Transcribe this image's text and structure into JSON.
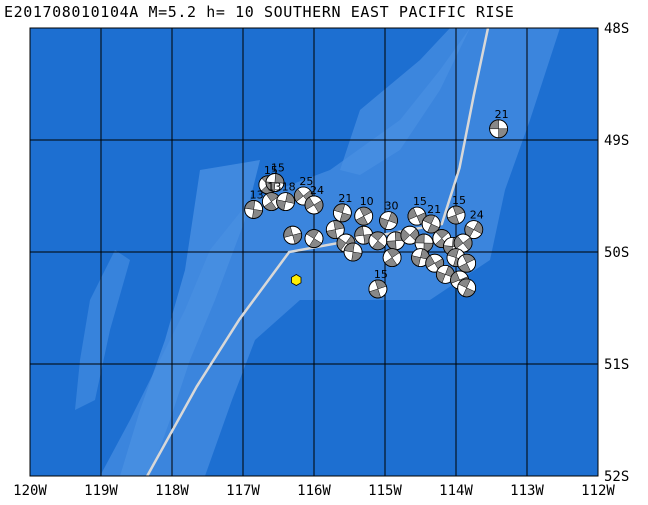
{
  "title": "E201708010104A M=5.2 h= 10 SOUTHERN EAST PACIFIC RISE",
  "map": {
    "colors": {
      "ocean_deep": "#1d6fd1",
      "ridge_shallow": "#3b85dd",
      "grid": "#000000",
      "plate_boundary": "#d8d8d8",
      "epicenter": "#ffee00",
      "beachball_fill": "#888888"
    },
    "lon_range": [
      -120,
      -112
    ],
    "lat_range": [
      -52,
      -48
    ],
    "lon_labels": [
      "120W",
      "119W",
      "118W",
      "117W",
      "116W",
      "115W",
      "114W",
      "113W",
      "112W"
    ],
    "lat_labels": [
      "48S",
      "49S",
      "50S",
      "51S",
      "52S"
    ],
    "epicenter": {
      "lon": -116.25,
      "lat": -50.25
    },
    "boundary": [
      {
        "lon": -113.55,
        "lat": -48.0
      },
      {
        "lon": -113.75,
        "lat": -48.6
      },
      {
        "lon": -113.95,
        "lat": -49.25
      },
      {
        "lon": -114.2,
        "lat": -49.75
      },
      {
        "lon": -116.35,
        "lat": -50.0
      },
      {
        "lon": -117.05,
        "lat": -50.6
      },
      {
        "lon": -117.65,
        "lat": -51.2
      },
      {
        "lon": -118.35,
        "lat": -52.0
      }
    ],
    "mechanisms": [
      {
        "label": "21",
        "lon": -113.4,
        "lat": -48.9
      },
      {
        "label": "15",
        "lon": -116.65,
        "lat": -49.4
      },
      {
        "label": "15",
        "lon": -116.55,
        "lat": -49.38
      },
      {
        "label": "25",
        "lon": -116.15,
        "lat": -49.5
      },
      {
        "label": "13",
        "lon": -116.85,
        "lat": -49.62
      },
      {
        "label": "13",
        "lon": -116.6,
        "lat": -49.55
      },
      {
        "label": "18",
        "lon": -116.4,
        "lat": -49.55
      },
      {
        "label": "24",
        "lon": -116.0,
        "lat": -49.58
      },
      {
        "label": "21",
        "lon": -115.6,
        "lat": -49.65
      },
      {
        "label": "10",
        "lon": -115.3,
        "lat": -49.68
      },
      {
        "label": "30",
        "lon": -114.95,
        "lat": -49.72
      },
      {
        "label": "15",
        "lon": -114.55,
        "lat": -49.68
      },
      {
        "label": "21",
        "lon": -114.35,
        "lat": -49.75
      },
      {
        "label": "15",
        "lon": -114.0,
        "lat": -49.67
      },
      {
        "label": "24",
        "lon": -113.75,
        "lat": -49.8
      },
      {
        "label": "",
        "lon": -116.3,
        "lat": -49.85
      },
      {
        "label": "",
        "lon": -116.0,
        "lat": -49.88
      },
      {
        "label": "",
        "lon": -115.7,
        "lat": -49.8
      },
      {
        "label": "",
        "lon": -115.55,
        "lat": -49.92
      },
      {
        "label": "",
        "lon": -115.3,
        "lat": -49.85
      },
      {
        "label": "",
        "lon": -115.1,
        "lat": -49.9
      },
      {
        "label": "",
        "lon": -114.85,
        "lat": -49.9
      },
      {
        "label": "",
        "lon": -114.65,
        "lat": -49.85
      },
      {
        "label": "",
        "lon": -114.45,
        "lat": -49.92
      },
      {
        "label": "",
        "lon": -114.2,
        "lat": -49.88
      },
      {
        "label": "",
        "lon": -114.05,
        "lat": -49.95
      },
      {
        "label": "",
        "lon": -113.9,
        "lat": -49.92
      },
      {
        "label": "",
        "lon": -115.45,
        "lat": -50.0
      },
      {
        "label": "",
        "lon": -114.9,
        "lat": -50.05
      },
      {
        "label": "",
        "lon": -114.5,
        "lat": -50.05
      },
      {
        "label": "",
        "lon": -114.3,
        "lat": -50.1
      },
      {
        "label": "",
        "lon": -114.0,
        "lat": -50.05
      },
      {
        "label": "",
        "lon": -113.85,
        "lat": -50.1
      },
      {
        "label": "",
        "lon": -114.15,
        "lat": -50.2
      },
      {
        "label": "",
        "lon": -113.95,
        "lat": -50.25
      },
      {
        "label": "",
        "lon": -113.85,
        "lat": -50.32
      },
      {
        "label": "15",
        "lon": -115.1,
        "lat": -50.33
      }
    ]
  }
}
